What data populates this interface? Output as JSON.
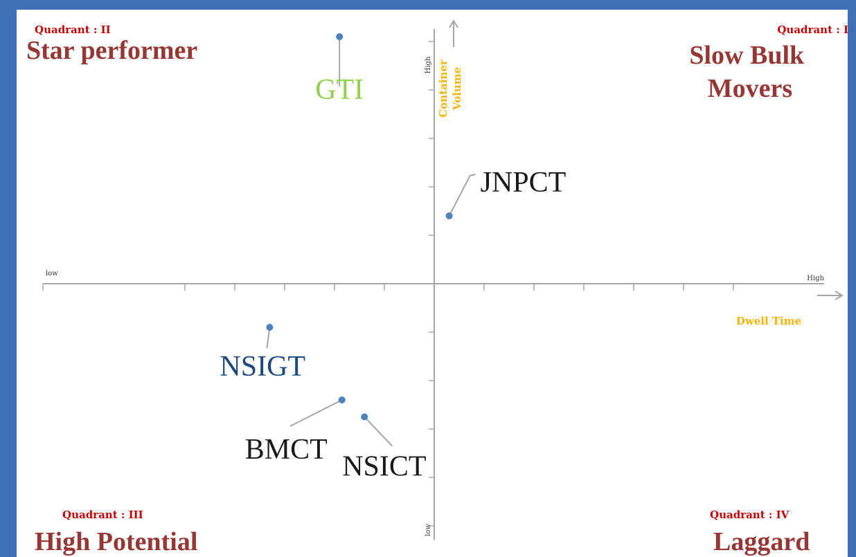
{
  "colors": {
    "frame": "#3f6fb5",
    "quadrant_small": "#c00000",
    "quadrant_big": "#953735",
    "axis": "#a6a6a6",
    "axis_title": "#f5b400",
    "point": "#4f81bd",
    "leader": "#a6a6a6"
  },
  "chart_data": {
    "type": "scatter",
    "xlabel": "Dwell Time",
    "ylabel": "Container Volume",
    "x_low_label": "low",
    "x_high_label": "High",
    "y_low_label": "low",
    "y_high_label": "High",
    "xlim": [
      -6.5,
      6.5
    ],
    "ylim": [
      -5.3,
      5.3
    ],
    "x_ticks": [
      -5,
      -4,
      -3,
      -2,
      -1,
      0,
      1,
      2,
      3,
      4,
      5,
      6
    ],
    "y_ticks": [
      -5,
      -4,
      -3,
      -2,
      -1,
      0,
      1,
      2,
      3,
      4,
      5
    ],
    "grid": false,
    "points": [
      {
        "label": "GTI",
        "x": -1.9,
        "y": 5.1,
        "color": "#92d050"
      },
      {
        "label": "JNPCT",
        "x": 0.3,
        "y": 1.4,
        "color": "#1a1a1a"
      },
      {
        "label": "NSIGT",
        "x": -3.3,
        "y": -0.9,
        "color": "#1f497d"
      },
      {
        "label": "BMCT",
        "x": -1.85,
        "y": -2.4,
        "color": "#1a1a1a"
      },
      {
        "label": "NSICT",
        "x": -1.4,
        "y": -2.75,
        "color": "#1a1a1a"
      }
    ],
    "quadrants": [
      {
        "id": "II",
        "tag": "Quadrant : II",
        "name": "Star performer"
      },
      {
        "id": "I",
        "tag": "Quadrant : I",
        "name": "Slow Bulk Movers"
      },
      {
        "id": "III",
        "tag": "Quadrant : III",
        "name": "High Potential"
      },
      {
        "id": "IV",
        "tag": "Quadrant : IV",
        "name": "Laggard"
      }
    ]
  }
}
